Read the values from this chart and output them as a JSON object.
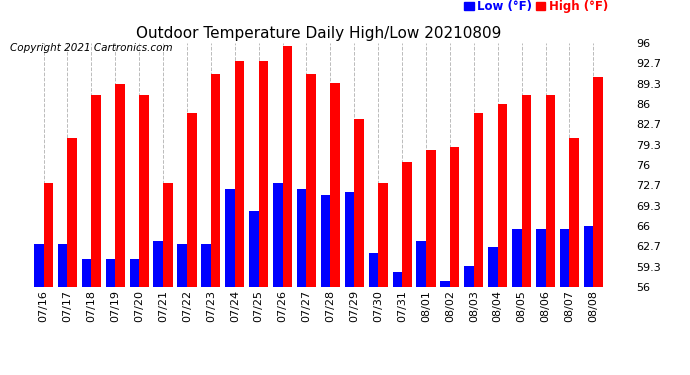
{
  "title": "Outdoor Temperature Daily High/Low 20210809",
  "copyright": "Copyright 2021 Cartronics.com",
  "ylim": [
    56.0,
    96.0
  ],
  "yticks": [
    56.0,
    59.3,
    62.7,
    66.0,
    69.3,
    72.7,
    76.0,
    79.3,
    82.7,
    86.0,
    89.3,
    92.7,
    96.0
  ],
  "dates": [
    "07/16",
    "07/17",
    "07/18",
    "07/19",
    "07/20",
    "07/21",
    "07/22",
    "07/23",
    "07/24",
    "07/25",
    "07/26",
    "07/27",
    "07/28",
    "07/29",
    "07/30",
    "07/31",
    "08/01",
    "08/02",
    "08/03",
    "08/04",
    "08/05",
    "08/06",
    "08/07",
    "08/08"
  ],
  "highs": [
    73.0,
    80.5,
    87.5,
    89.3,
    87.5,
    73.0,
    84.5,
    91.0,
    93.0,
    93.0,
    95.5,
    91.0,
    89.5,
    83.5,
    73.0,
    76.5,
    78.5,
    79.0,
    84.5,
    86.0,
    87.5,
    87.5,
    80.5,
    90.5
  ],
  "lows": [
    63.0,
    63.0,
    60.5,
    60.5,
    60.5,
    63.5,
    63.0,
    63.0,
    72.0,
    68.5,
    73.0,
    72.0,
    71.0,
    71.5,
    61.5,
    58.5,
    63.5,
    57.0,
    59.5,
    62.5,
    65.5,
    65.5,
    65.5,
    66.0
  ],
  "bar_color_high": "#ff0000",
  "bar_color_low": "#0000ff",
  "bg_color": "#ffffff",
  "grid_color": "#bbbbbb",
  "title_fontsize": 11,
  "tick_fontsize": 8,
  "copyright_fontsize": 7.5
}
